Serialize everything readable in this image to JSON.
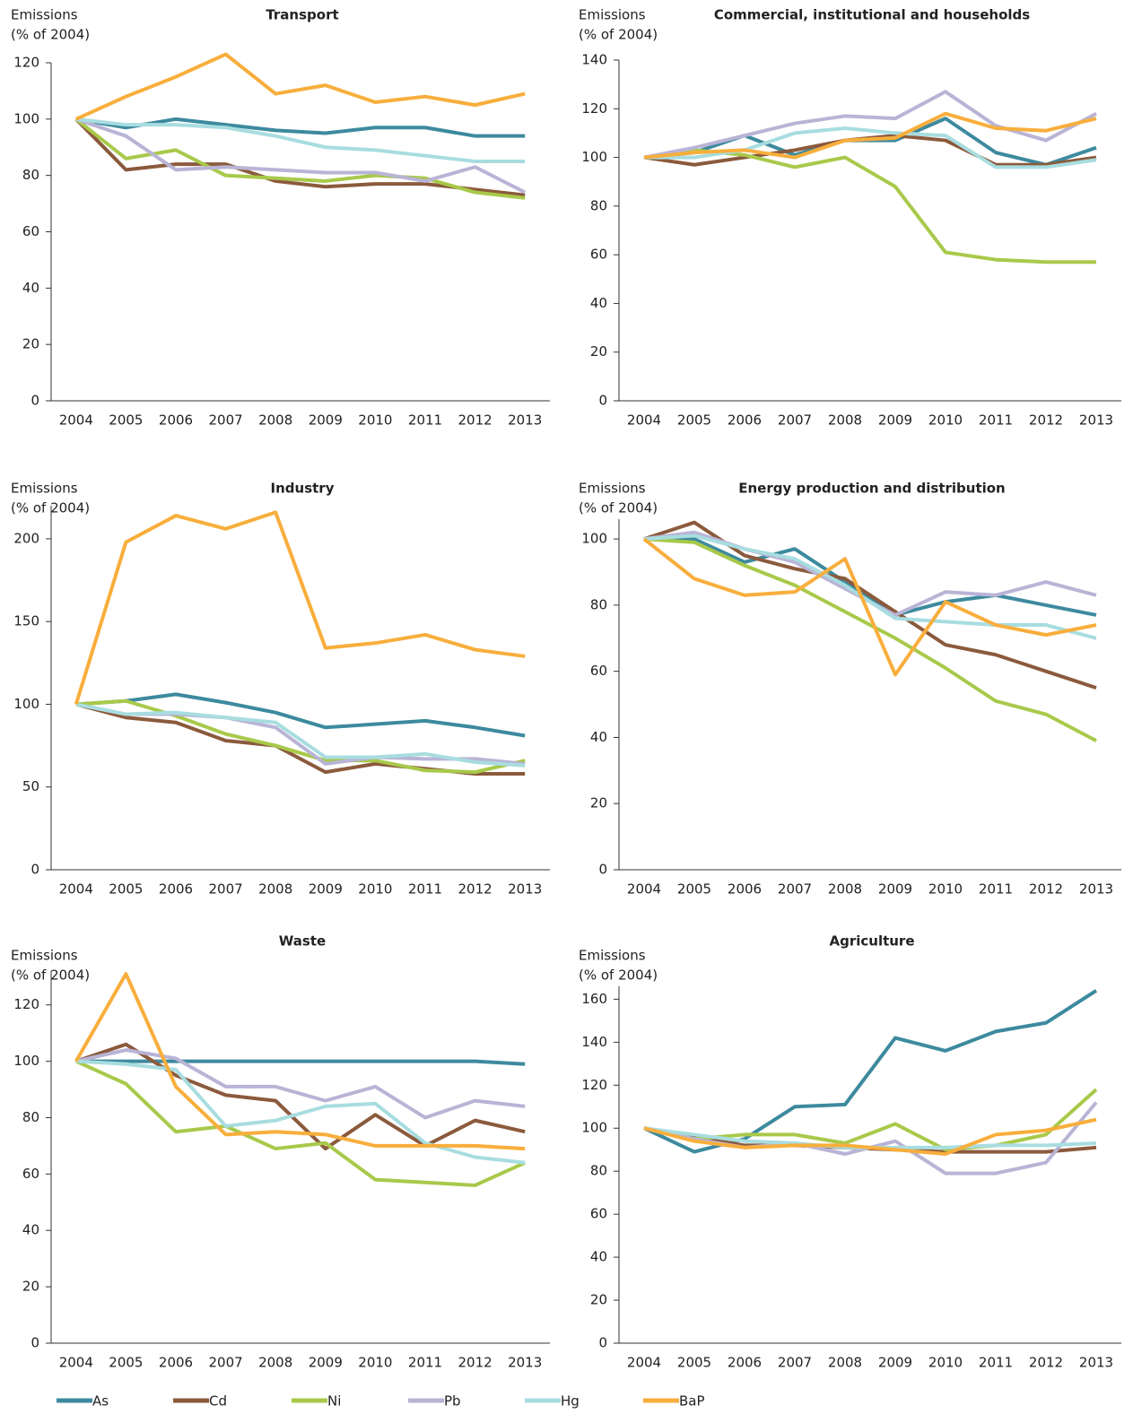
{
  "chart_data": [
    {
      "type": "line",
      "title": "Transport",
      "ylabel_lines": [
        "Emissions",
        "(% of 2004)"
      ],
      "categories": [
        "2004",
        "2005",
        "2006",
        "2007",
        "2008",
        "2009",
        "2010",
        "2011",
        "2012",
        "2013"
      ],
      "ylim": [
        0,
        120
      ],
      "yticks": [
        0,
        20,
        40,
        60,
        80,
        100,
        120
      ],
      "series": [
        {
          "name": "As",
          "color": "#3d8a9e",
          "values": [
            100,
            97,
            100,
            98,
            96,
            95,
            97,
            97,
            94,
            94
          ]
        },
        {
          "name": "Cd",
          "color": "#8b5a3c",
          "values": [
            100,
            82,
            84,
            84,
            78,
            76,
            77,
            77,
            75,
            73
          ]
        },
        {
          "name": "Ni",
          "color": "#a8c94a",
          "values": [
            100,
            86,
            89,
            80,
            79,
            78,
            80,
            79,
            74,
            72
          ]
        },
        {
          "name": "Pb",
          "color": "#b9b4d6",
          "values": [
            100,
            94,
            82,
            83,
            82,
            81,
            81,
            78,
            83,
            74
          ]
        },
        {
          "name": "Hg",
          "color": "#a8dde0",
          "values": [
            100,
            98,
            98,
            97,
            94,
            90,
            89,
            87,
            85,
            85
          ]
        },
        {
          "name": "BaP",
          "color": "#f8ae3c",
          "values": [
            100,
            108,
            115,
            123,
            109,
            112,
            106,
            108,
            105,
            109
          ]
        }
      ]
    },
    {
      "type": "line",
      "title": "Commercial, institutional and households",
      "ylabel_lines": [
        "Emissions",
        "(% of 2004)"
      ],
      "categories": [
        "2004",
        "2005",
        "2006",
        "2007",
        "2008",
        "2009",
        "2010",
        "2011",
        "2012",
        "2013"
      ],
      "ylim": [
        0,
        140
      ],
      "yticks": [
        0,
        20,
        40,
        60,
        80,
        100,
        120,
        140
      ],
      "series": [
        {
          "name": "As",
          "color": "#3d8a9e",
          "values": [
            100,
            102,
            109,
            101,
            107,
            107,
            116,
            102,
            97,
            104
          ]
        },
        {
          "name": "Cd",
          "color": "#8b5a3c",
          "values": [
            100,
            97,
            100,
            103,
            107,
            109,
            107,
            97,
            97,
            100
          ]
        },
        {
          "name": "Ni",
          "color": "#a8c94a",
          "values": [
            100,
            103,
            101,
            96,
            100,
            88,
            61,
            58,
            57,
            57
          ]
        },
        {
          "name": "Pb",
          "color": "#b9b4d6",
          "values": [
            100,
            104,
            109,
            114,
            117,
            116,
            127,
            113,
            107,
            118
          ]
        },
        {
          "name": "Hg",
          "color": "#a8dde0",
          "values": [
            100,
            100,
            103,
            110,
            112,
            110,
            109,
            96,
            96,
            99
          ]
        },
        {
          "name": "BaP",
          "color": "#f8ae3c",
          "values": [
            100,
            102,
            103,
            100,
            107,
            108,
            118,
            112,
            111,
            116
          ]
        }
      ]
    },
    {
      "type": "line",
      "title": "Industry",
      "ylabel_lines": [
        "Emissions",
        "(% of 2004)"
      ],
      "categories": [
        "2004",
        "2005",
        "2006",
        "2007",
        "2008",
        "2009",
        "2010",
        "2011",
        "2012",
        "2013"
      ],
      "ylim": [
        0,
        220
      ],
      "yticks": [
        0,
        50,
        100,
        150,
        200
      ],
      "series": [
        {
          "name": "As",
          "color": "#3d8a9e",
          "values": [
            100,
            102,
            106,
            101,
            95,
            86,
            88,
            90,
            86,
            81
          ]
        },
        {
          "name": "Cd",
          "color": "#8b5a3c",
          "values": [
            100,
            92,
            89,
            78,
            75,
            59,
            64,
            61,
            58,
            58
          ]
        },
        {
          "name": "Ni",
          "color": "#a8c94a",
          "values": [
            100,
            102,
            93,
            82,
            75,
            66,
            66,
            60,
            59,
            66
          ]
        },
        {
          "name": "Pb",
          "color": "#b9b4d6",
          "values": [
            100,
            94,
            94,
            92,
            86,
            64,
            68,
            67,
            67,
            64
          ]
        },
        {
          "name": "Hg",
          "color": "#a8dde0",
          "values": [
            100,
            94,
            95,
            92,
            89,
            68,
            68,
            70,
            65,
            63
          ]
        },
        {
          "name": "BaP",
          "color": "#f8ae3c",
          "values": [
            100,
            198,
            214,
            206,
            216,
            134,
            137,
            142,
            133,
            129
          ]
        }
      ]
    },
    {
      "type": "line",
      "title": "Energy production and distribution",
      "ylabel_lines": [
        "Emissions",
        "(% of 2004)"
      ],
      "categories": [
        "2004",
        "2005",
        "2006",
        "2007",
        "2008",
        "2009",
        "2010",
        "2011",
        "2012",
        "2013"
      ],
      "ylim": [
        0,
        106
      ],
      "yticks": [
        0,
        20,
        40,
        60,
        80,
        100
      ],
      "series": [
        {
          "name": "As",
          "color": "#3d8a9e",
          "values": [
            100,
            100,
            93,
            97,
            87,
            77,
            81,
            83,
            80,
            77
          ]
        },
        {
          "name": "Cd",
          "color": "#8b5a3c",
          "values": [
            100,
            105,
            95,
            91,
            88,
            78,
            68,
            65,
            60,
            55
          ]
        },
        {
          "name": "Ni",
          "color": "#a8c94a",
          "values": [
            100,
            99,
            92,
            86,
            78,
            70,
            61,
            51,
            47,
            39
          ]
        },
        {
          "name": "Pb",
          "color": "#b9b4d6",
          "values": [
            100,
            102,
            97,
            93,
            85,
            77,
            84,
            83,
            87,
            83
          ]
        },
        {
          "name": "Hg",
          "color": "#a8dde0",
          "values": [
            100,
            101,
            97,
            94,
            86,
            76,
            75,
            74,
            74,
            70
          ]
        },
        {
          "name": "BaP",
          "color": "#f8ae3c",
          "values": [
            100,
            88,
            83,
            84,
            94,
            59,
            81,
            74,
            71,
            74
          ]
        }
      ]
    },
    {
      "type": "line",
      "title": "Waste",
      "ylabel_lines": [
        "Emissions",
        "(% of 2004)"
      ],
      "categories": [
        "2004",
        "2005",
        "2006",
        "2007",
        "2008",
        "2009",
        "2010",
        "2011",
        "2012",
        "2013"
      ],
      "ylim": [
        0,
        132
      ],
      "yticks": [
        0,
        20,
        40,
        60,
        80,
        100,
        120
      ],
      "series": [
        {
          "name": "As",
          "color": "#3d8a9e",
          "values": [
            100,
            100,
            100,
            100,
            100,
            100,
            100,
            100,
            100,
            99
          ]
        },
        {
          "name": "Cd",
          "color": "#8b5a3c",
          "values": [
            100,
            106,
            95,
            88,
            86,
            69,
            81,
            70,
            79,
            75
          ]
        },
        {
          "name": "Ni",
          "color": "#a8c94a",
          "values": [
            100,
            92,
            75,
            77,
            69,
            71,
            58,
            57,
            56,
            64
          ]
        },
        {
          "name": "Pb",
          "color": "#b9b4d6",
          "values": [
            100,
            104,
            101,
            91,
            91,
            86,
            91,
            80,
            86,
            84
          ]
        },
        {
          "name": "Hg",
          "color": "#a8dde0",
          "values": [
            100,
            99,
            97,
            77,
            79,
            84,
            85,
            71,
            66,
            64
          ]
        },
        {
          "name": "BaP",
          "color": "#f8ae3c",
          "values": [
            100,
            131,
            91,
            74,
            75,
            74,
            70,
            70,
            70,
            69
          ]
        }
      ]
    },
    {
      "type": "line",
      "title": "Agriculture",
      "ylabel_lines": [
        "Emissions",
        "(% of 2004)"
      ],
      "categories": [
        "2004",
        "2005",
        "2006",
        "2007",
        "2008",
        "2009",
        "2010",
        "2011",
        "2012",
        "2013"
      ],
      "ylim": [
        0,
        166
      ],
      "yticks": [
        0,
        20,
        40,
        60,
        80,
        100,
        120,
        140,
        160
      ],
      "series": [
        {
          "name": "As",
          "color": "#3d8a9e",
          "values": [
            100,
            89,
            95,
            110,
            111,
            142,
            136,
            145,
            149,
            164
          ]
        },
        {
          "name": "Cd",
          "color": "#8b5a3c",
          "values": [
            100,
            96,
            92,
            92,
            91,
            90,
            89,
            89,
            89,
            91
          ]
        },
        {
          "name": "Ni",
          "color": "#a8c94a",
          "values": [
            100,
            95,
            97,
            97,
            93,
            102,
            90,
            92,
            97,
            118
          ]
        },
        {
          "name": "Pb",
          "color": "#b9b4d6",
          "values": [
            100,
            95,
            91,
            93,
            88,
            94,
            79,
            79,
            84,
            112
          ]
        },
        {
          "name": "Hg",
          "color": "#a8dde0",
          "values": [
            100,
            97,
            94,
            93,
            91,
            91,
            91,
            92,
            92,
            93
          ]
        },
        {
          "name": "BaP",
          "color": "#f8ae3c",
          "values": [
            100,
            94,
            91,
            92,
            92,
            90,
            88,
            97,
            99,
            104
          ]
        }
      ]
    }
  ]
}
